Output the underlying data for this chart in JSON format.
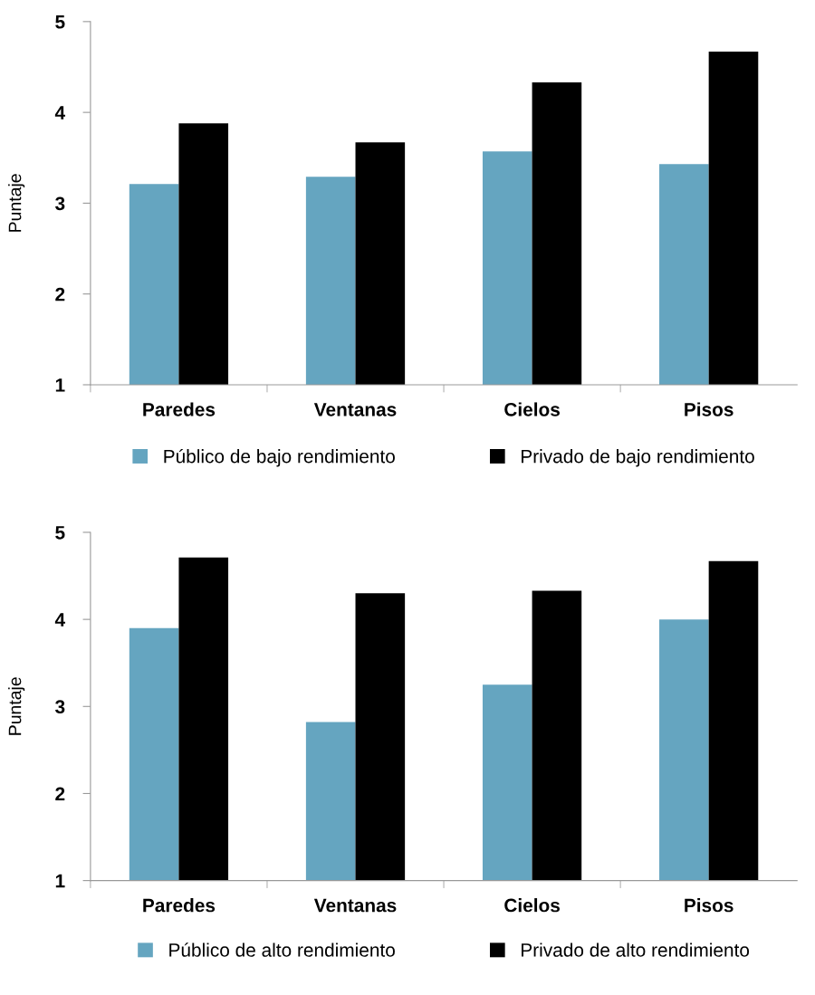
{
  "chart_data": [
    {
      "type": "bar",
      "ylabel": "Puntaje",
      "categories": [
        "Paredes",
        "Ventanas",
        "Cielos",
        "Pisos"
      ],
      "ylim": [
        1,
        5
      ],
      "yticks": [
        1,
        2,
        3,
        4,
        5
      ],
      "grid": false,
      "legend": "bottom",
      "series": [
        {
          "name": "Público de bajo rendimiento",
          "color": "#65a5c0",
          "values": [
            3.21,
            3.29,
            3.57,
            3.43
          ]
        },
        {
          "name": "Privado de bajo rendimiento",
          "color": "#000000",
          "values": [
            3.88,
            3.67,
            4.33,
            4.67
          ]
        }
      ]
    },
    {
      "type": "bar",
      "ylabel": "Puntaje",
      "categories": [
        "Paredes",
        "Ventanas",
        "Cielos",
        "Pisos"
      ],
      "ylim": [
        1,
        5
      ],
      "yticks": [
        1,
        2,
        3,
        4,
        5
      ],
      "grid": false,
      "legend": "bottom",
      "series": [
        {
          "name": "Público de alto rendimiento",
          "color": "#65a5c0",
          "values": [
            3.9,
            2.82,
            3.25,
            4.0
          ]
        },
        {
          "name": "Privado de alto rendimiento",
          "color": "#000000",
          "values": [
            4.71,
            4.3,
            4.33,
            4.67
          ]
        }
      ]
    }
  ]
}
